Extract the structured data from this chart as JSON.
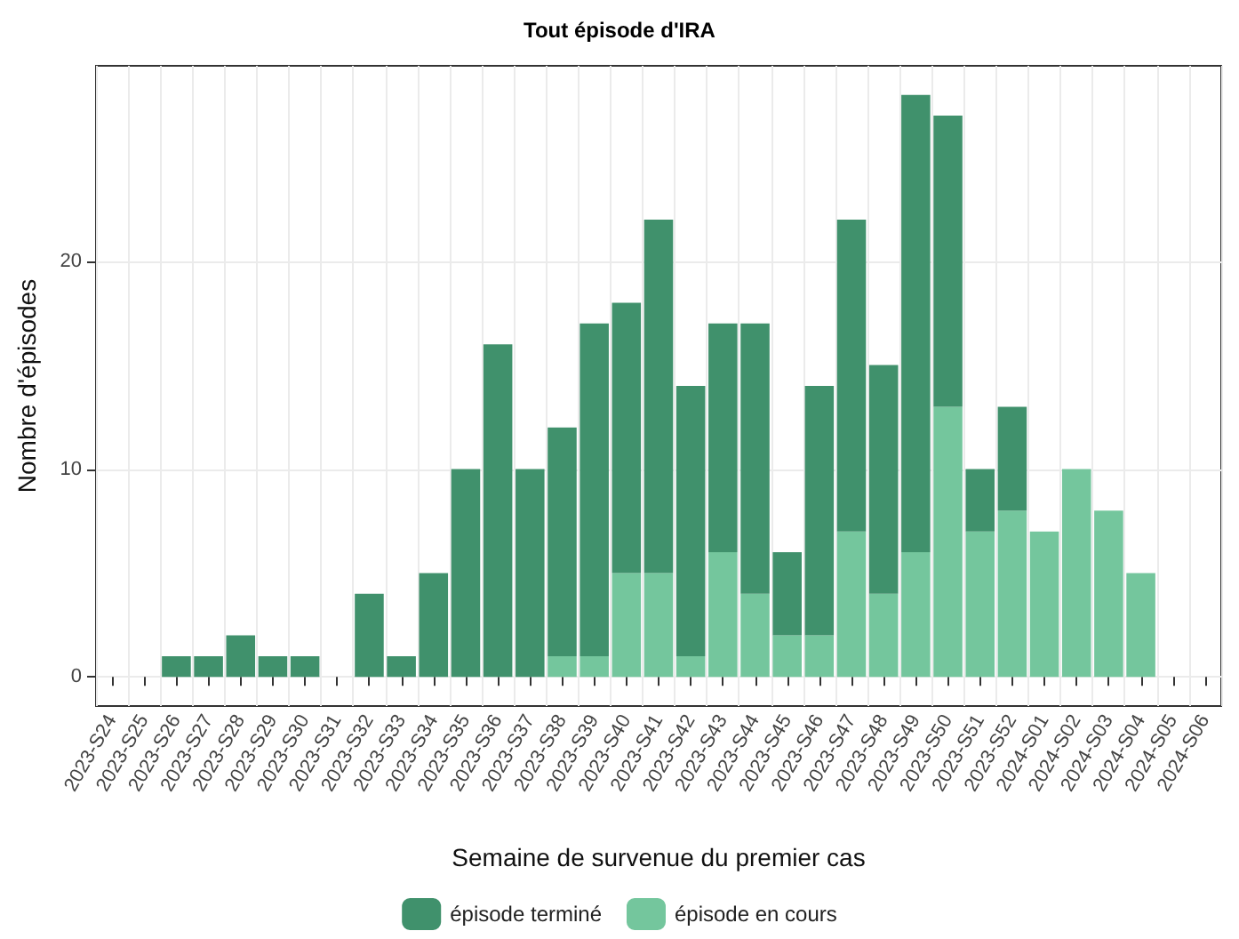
{
  "chart_data": {
    "type": "bar",
    "title": "Tout épisode d'IRA",
    "xlabel": "Semaine de survenue du premier cas",
    "ylabel": "Nombre d'épisodes",
    "categories": [
      "2023-S24",
      "2023-S25",
      "2023-S26",
      "2023-S27",
      "2023-S28",
      "2023-S29",
      "2023-S30",
      "2023-S31",
      "2023-S32",
      "2023-S33",
      "2023-S34",
      "2023-S35",
      "2023-S36",
      "2023-S37",
      "2023-S38",
      "2023-S39",
      "2023-S40",
      "2023-S41",
      "2023-S42",
      "2023-S43",
      "2023-S44",
      "2023-S45",
      "2023-S46",
      "2023-S47",
      "2023-S48",
      "2023-S49",
      "2023-S50",
      "2023-S51",
      "2023-S52",
      "2024-S01",
      "2024-S02",
      "2024-S03",
      "2024-S04",
      "2024-S05",
      "2024-S06"
    ],
    "stacked": true,
    "series": [
      {
        "name": "épisode en cours",
        "color": "#74c69d",
        "values": [
          0,
          0,
          0,
          0,
          0,
          0,
          0,
          0,
          0,
          0,
          0,
          0,
          0,
          0,
          1,
          1,
          5,
          5,
          1,
          6,
          4,
          2,
          2,
          7,
          4,
          6,
          13,
          7,
          8,
          7,
          10,
          8,
          5,
          0,
          0
        ]
      },
      {
        "name": "épisode terminé",
        "color": "#40916c",
        "values": [
          0,
          0,
          1,
          1,
          2,
          1,
          1,
          0,
          4,
          1,
          5,
          10,
          16,
          10,
          11,
          16,
          13,
          17,
          13,
          11,
          13,
          4,
          12,
          15,
          11,
          22,
          14,
          3,
          5,
          0,
          0,
          0,
          0,
          0,
          0
        ]
      }
    ],
    "ylim": [
      -1.4,
      29.4
    ],
    "yticks": [
      0,
      10,
      20
    ],
    "grid": true,
    "legend": "bottom"
  }
}
